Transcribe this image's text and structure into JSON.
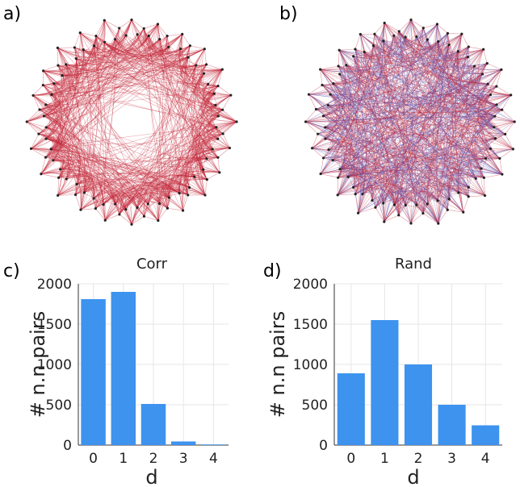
{
  "panels": {
    "a": {
      "label": "a)",
      "edge_color": "#c4283a",
      "secondary_edge_color": "#c4283a"
    },
    "b": {
      "label": "b)",
      "edge_color": "#c4283a",
      "secondary_edge_color": "#5a4fb0"
    }
  },
  "chart_data": [
    {
      "type": "bar",
      "panel_label": "c)",
      "title": "Corr",
      "categories": [
        "0",
        "1",
        "2",
        "3",
        "4"
      ],
      "values": [
        1810,
        1900,
        510,
        45,
        8
      ],
      "xlabel": "d",
      "ylabel": "# n.n pairs",
      "ylim": [
        0,
        2000
      ],
      "yticks": [
        "0",
        "500",
        "1000",
        "1500",
        "2000"
      ],
      "grid": true,
      "bar_color": "#3d93ee"
    },
    {
      "type": "bar",
      "panel_label": "d)",
      "title": "Rand",
      "categories": [
        "0",
        "1",
        "2",
        "3",
        "4"
      ],
      "values": [
        890,
        1550,
        1000,
        500,
        245
      ],
      "xlabel": "d",
      "ylabel": "# n.n pairs",
      "ylim": [
        0,
        2000
      ],
      "yticks": [
        "0",
        "500",
        "1000",
        "1500",
        "2000"
      ],
      "grid": true,
      "bar_color": "#3d93ee"
    }
  ]
}
